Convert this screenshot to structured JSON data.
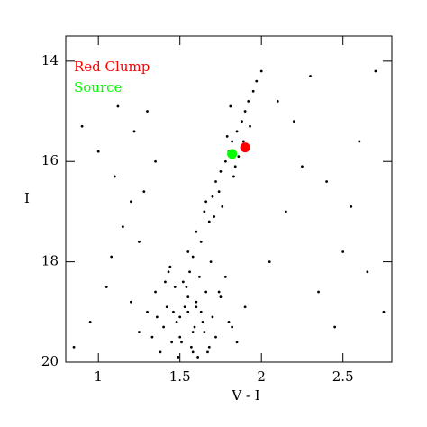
{
  "chart_data": {
    "type": "scatter",
    "xlabel": "V - I",
    "ylabel": "I",
    "xlim": [
      0.8,
      2.8
    ],
    "ylim": [
      20,
      13.5
    ],
    "xticks": [
      1,
      1.5,
      2,
      2.5
    ],
    "yticks": [
      14,
      16,
      18,
      20
    ],
    "y_inverted": true,
    "series": [
      {
        "color": "#000000",
        "x": [
          1.35,
          1.42,
          1.48,
          1.55,
          1.6,
          1.65,
          1.7,
          1.52,
          1.45,
          1.58,
          1.62,
          1.5,
          1.4,
          1.3,
          1.75,
          1.8,
          1.68,
          1.56,
          1.47,
          1.53,
          1.61,
          1.66,
          1.38,
          1.44,
          1.59,
          1.72,
          1.5,
          1.55,
          1.63,
          1.49,
          1.25,
          1.2,
          1.85,
          1.9,
          1.78,
          1.57,
          1.46,
          1.54,
          1.64,
          1.69,
          1.33,
          1.41,
          1.51,
          1.6,
          1.67,
          1.74,
          1.82,
          1.36,
          1.43,
          1.58,
          1.55,
          1.6,
          1.65,
          1.7,
          1.72,
          1.75,
          1.78,
          1.8,
          1.82,
          1.85,
          1.88,
          1.9,
          1.92,
          1.95,
          1.68,
          1.74,
          1.86,
          1.83,
          1.79,
          1.97,
          2.0,
          1.63,
          1.58,
          1.76,
          1.93,
          1.84,
          1.71,
          1.66,
          1.89,
          1.81,
          0.9,
          1.0,
          1.1,
          1.2,
          1.15,
          1.25,
          1.05,
          0.95,
          1.3,
          1.35,
          2.1,
          2.2,
          2.3,
          2.4,
          2.5,
          2.6,
          2.7,
          2.35,
          2.15,
          2.45,
          2.65,
          2.25,
          1.12,
          1.22,
          1.08,
          2.05,
          2.55,
          2.75,
          0.85,
          1.28
        ],
        "y": [
          18.6,
          18.9,
          19.2,
          19.0,
          18.8,
          19.4,
          19.1,
          18.4,
          19.6,
          19.8,
          18.3,
          19.5,
          19.3,
          19.0,
          18.7,
          19.2,
          19.7,
          18.2,
          18.5,
          18.9,
          19.9,
          18.6,
          19.8,
          18.1,
          19.3,
          19.5,
          19.1,
          18.7,
          19.0,
          19.9,
          19.4,
          18.8,
          19.6,
          18.9,
          18.3,
          19.7,
          19.0,
          18.5,
          19.2,
          18.0,
          19.5,
          18.4,
          19.6,
          18.9,
          19.8,
          18.6,
          19.3,
          19.1,
          18.2,
          19.4,
          17.8,
          17.4,
          17.0,
          16.7,
          16.4,
          16.2,
          16.0,
          15.8,
          15.6,
          15.4,
          15.2,
          15.0,
          14.8,
          14.6,
          17.2,
          16.6,
          15.9,
          16.3,
          15.5,
          14.4,
          14.2,
          17.6,
          17.9,
          16.9,
          15.3,
          16.1,
          17.1,
          16.8,
          15.6,
          14.9,
          15.3,
          15.8,
          16.3,
          16.8,
          17.3,
          17.6,
          18.5,
          19.2,
          15.0,
          16.0,
          14.8,
          15.2,
          14.3,
          16.4,
          17.8,
          15.6,
          14.2,
          18.6,
          17.0,
          19.3,
          18.2,
          16.1,
          14.9,
          15.4,
          17.9,
          18.0,
          16.9,
          19.0,
          19.7,
          16.6
        ]
      },
      {
        "name": "Red Clump",
        "color": "#ff0000",
        "x": [
          1.9
        ],
        "y": [
          15.72
        ]
      },
      {
        "name": "Source",
        "color": "#00ff00",
        "x": [
          1.82
        ],
        "y": [
          15.85
        ]
      }
    ]
  }
}
